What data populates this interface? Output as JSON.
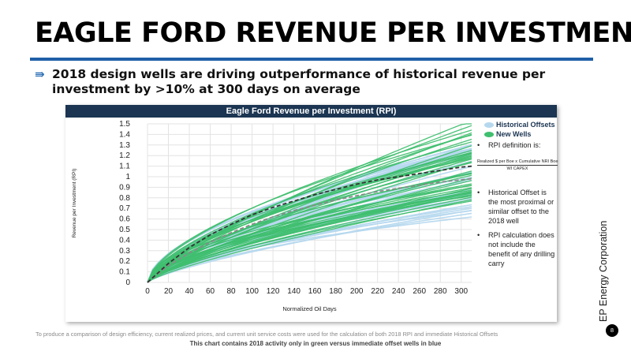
{
  "slide": {
    "title": "EAGLE FORD REVENUE PER INVESTMENT",
    "bullet_icon": "double-arrow-icon",
    "bullet_text": "2018 design wells are driving outperformance of historical revenue per investment by >10% at 300 days on average",
    "footnote": "To produce a comparison of design efficiency, current realized prices, and current unit service costs were used for the calculation of both 2018 RPI and immediate Historical Offsets",
    "caption": "This chart contains 2018 activity only in green versus immediate offset wells in blue",
    "company": "EP Energy Corporation",
    "page_number": "8",
    "accent_color": "#1f5fa8"
  },
  "notes": {
    "item1": "RPI definition is:",
    "formula_numerator": "Realized $ per Boe x Cumulative NRI Boe",
    "formula_denominator": "WI CAPEX",
    "item2": "Historical Offset is the most proximal or similar offset to the 2018 well",
    "item3": "RPI calculation does not include the benefit of any drilling carry"
  },
  "chart_data": {
    "type": "line",
    "title": "Eagle Ford Revenue per Investment (RPI)",
    "xlabel": "Normalized Oil Days",
    "ylabel": "Revenue per Investment (RPI)",
    "xlim": [
      0,
      310
    ],
    "ylim": [
      0,
      1.5
    ],
    "x_ticks": [
      0,
      20,
      40,
      60,
      80,
      100,
      120,
      140,
      160,
      180,
      200,
      220,
      240,
      260,
      280,
      300
    ],
    "y_ticks": [
      0,
      0.1,
      0.2,
      0.3,
      0.4,
      0.5,
      0.6,
      0.7,
      0.8,
      0.9,
      1,
      1.1,
      1.2,
      1.3,
      1.4,
      1.5
    ],
    "y_tick_labels": [
      "0",
      "0.1",
      "0.2",
      "0.3",
      "0.4",
      "0.5",
      "0.6",
      "0.7",
      "0.8",
      "0.9",
      "1",
      "1.1",
      "1.2",
      "1.3",
      "1.4",
      "1.5"
    ],
    "grid": true,
    "legend_position": "top-right",
    "series": [
      {
        "name": "Historical Offsets",
        "color": "#b5d8ee",
        "curve_count": 35,
        "value_at_300_range": [
          0.6,
          1.28
        ],
        "average": {
          "color": "#8a8a8a",
          "style": "dashed",
          "x": [
            0,
            20,
            40,
            60,
            80,
            100,
            120,
            140,
            160,
            180,
            200,
            220,
            240,
            260,
            280,
            300,
            310
          ],
          "values": [
            0,
            0.16,
            0.28,
            0.38,
            0.47,
            0.55,
            0.62,
            0.68,
            0.73,
            0.78,
            0.82,
            0.86,
            0.89,
            0.92,
            0.95,
            0.97,
            0.98
          ]
        }
      },
      {
        "name": "New Wells",
        "color": "#3fbf6f",
        "curve_count": 45,
        "value_at_300_range": [
          0.75,
          1.52
        ],
        "average": {
          "color": "#333333",
          "style": "dashed",
          "x": [
            0,
            20,
            40,
            60,
            80,
            100,
            120,
            140,
            160,
            180,
            200,
            220,
            240,
            260,
            280,
            300,
            310
          ],
          "values": [
            0,
            0.18,
            0.33,
            0.45,
            0.55,
            0.64,
            0.71,
            0.77,
            0.83,
            0.88,
            0.93,
            0.97,
            1.0,
            1.03,
            1.06,
            1.09,
            1.1
          ]
        }
      }
    ]
  }
}
